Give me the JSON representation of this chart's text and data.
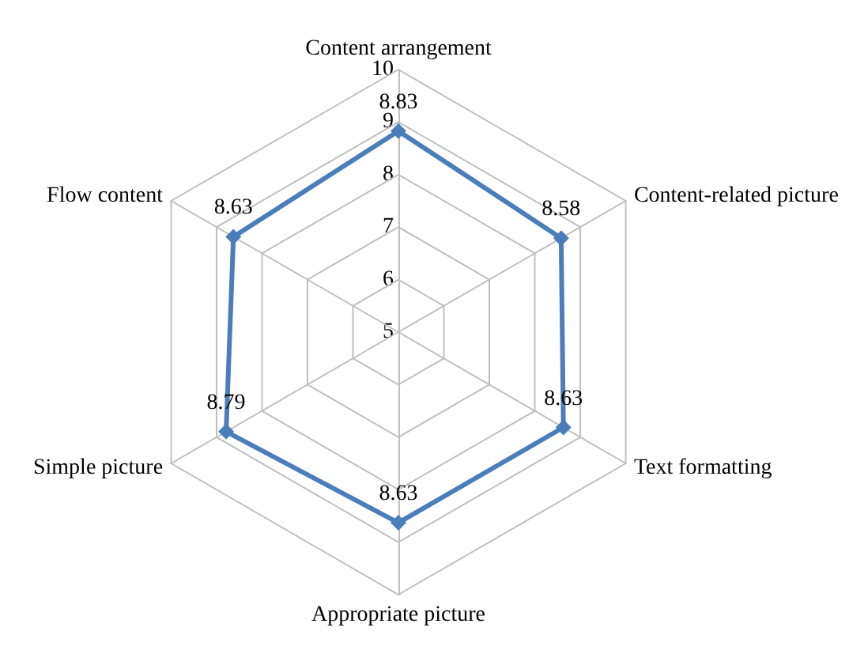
{
  "chart_data": {
    "type": "radar",
    "categories": [
      "Content arrangement",
      "Content-related picture",
      "Text formatting",
      "Appropriate picture",
      "Simple picture",
      "Flow content"
    ],
    "series": [
      {
        "color": "#4a7ebb",
        "values": [
          8.83,
          8.58,
          8.63,
          8.63,
          8.79,
          8.63
        ]
      }
    ],
    "ylim": [
      5,
      10
    ],
    "yticks": [
      5,
      6,
      7,
      8,
      9,
      10
    ],
    "data_labels": true,
    "marker": "diamond",
    "grid": true
  }
}
